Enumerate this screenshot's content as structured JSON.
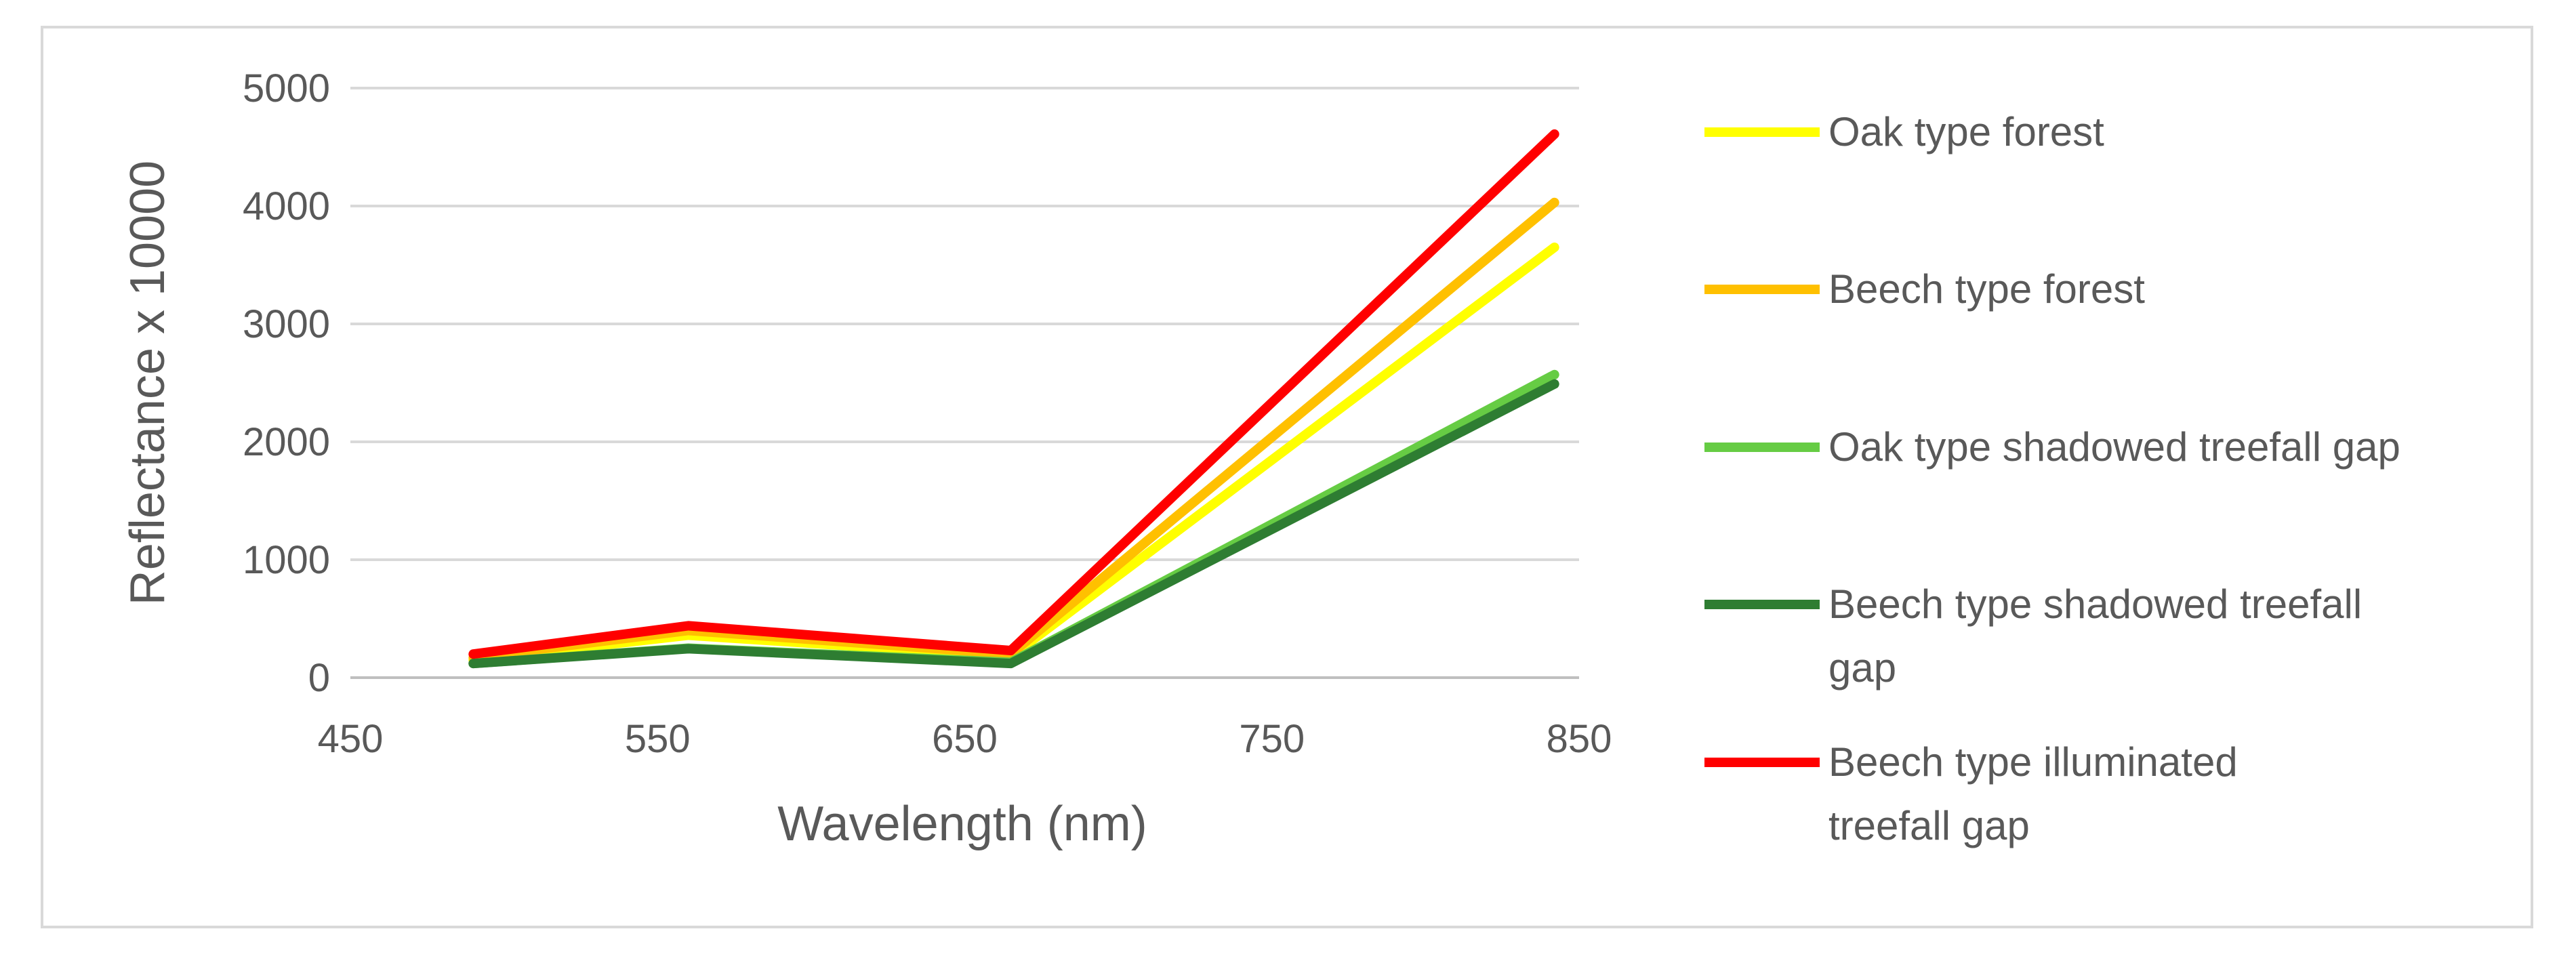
{
  "chart_data": {
    "type": "line",
    "title": "",
    "xlabel": "Wavelength (nm)",
    "ylabel": "Reflectance x 10000",
    "xlim": [
      450,
      850
    ],
    "ylim": [
      0,
      5000
    ],
    "x_ticks": [
      "450",
      "550",
      "650",
      "750",
      "850"
    ],
    "y_ticks": [
      "0",
      "1000",
      "2000",
      "3000",
      "4000",
      "5000"
    ],
    "grid": "horizontal",
    "legend_position": "right",
    "x": [
      490,
      560,
      665,
      842
    ],
    "series": [
      {
        "name": "Oak type forest",
        "color": "#ffff00",
        "values": [
          150,
          360,
          180,
          3650
        ]
      },
      {
        "name": "Beech type forest",
        "color": "#ffc000",
        "values": [
          170,
          400,
          200,
          4030
        ]
      },
      {
        "name": "Oak type shadowed treefall gap",
        "color": "#66cc44",
        "values": [
          120,
          250,
          130,
          2570
        ]
      },
      {
        "name": "Beech type shadowed treefall gap",
        "color": "#2e7d32",
        "values": [
          120,
          245,
          120,
          2490
        ]
      },
      {
        "name": "Beech type illuminated treefall gap",
        "color": "#ff0000",
        "values": [
          200,
          440,
          230,
          4610
        ]
      }
    ]
  }
}
